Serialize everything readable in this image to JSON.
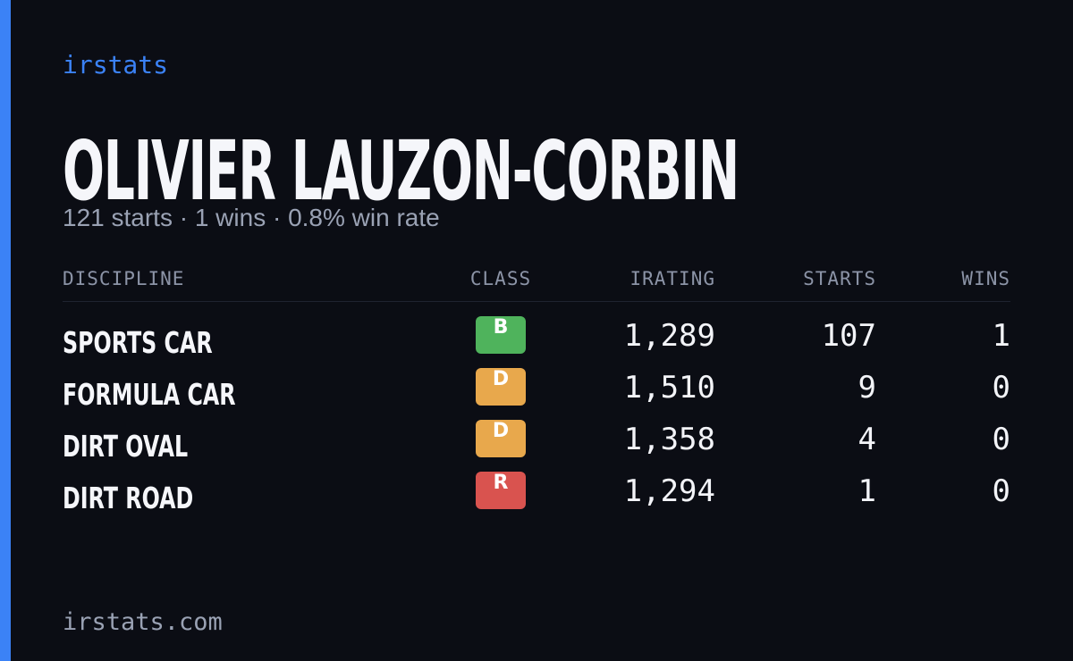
{
  "brand": "irstats",
  "name": "OLIVIER LAUZON-CORBIN",
  "summary": "121 starts · 1 wins · 0.8% win rate",
  "table": {
    "headers": [
      "DISCIPLINE",
      "CLASS",
      "IRATING",
      "STARTS",
      "WINS"
    ],
    "rows": [
      {
        "discipline": "SPORTS CAR",
        "class": "B",
        "class_color": "#4fb35c",
        "irating": "1,289",
        "starts": "107",
        "wins": "1"
      },
      {
        "discipline": "FORMULA CAR",
        "class": "D",
        "class_color": "#e8a84c",
        "irating": "1,510",
        "starts": "9",
        "wins": "0"
      },
      {
        "discipline": "DIRT OVAL",
        "class": "D",
        "class_color": "#e8a84c",
        "irating": "1,358",
        "starts": "4",
        "wins": "0"
      },
      {
        "discipline": "DIRT ROAD",
        "class": "R",
        "class_color": "#d9534f",
        "irating": "1,294",
        "starts": "1",
        "wins": "0"
      }
    ]
  },
  "footer": "irstats.com"
}
